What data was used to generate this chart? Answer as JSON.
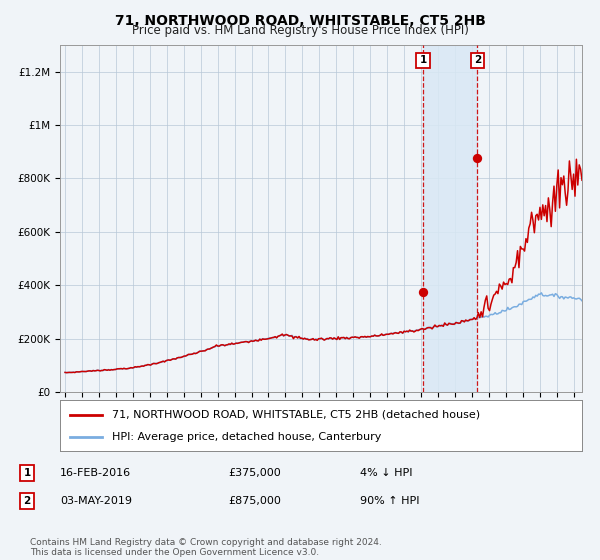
{
  "title": "71, NORTHWOOD ROAD, WHITSTABLE, CT5 2HB",
  "subtitle": "Price paid vs. HM Land Registry's House Price Index (HPI)",
  "ylim": [
    0,
    1300000
  ],
  "yticks": [
    0,
    200000,
    400000,
    600000,
    800000,
    1000000,
    1200000
  ],
  "ytick_labels": [
    "£0",
    "£200K",
    "£400K",
    "£600K",
    "£800K",
    "£1M",
    "£1.2M"
  ],
  "x_start_year": 1995,
  "x_end_year": 2025,
  "sale1_date": 2016.12,
  "sale1_price": 375000,
  "sale1_label": "16-FEB-2016",
  "sale1_pct": "4% ↓ HPI",
  "sale2_date": 2019.33,
  "sale2_price": 875000,
  "sale2_label": "03-MAY-2019",
  "sale2_pct": "90% ↑ HPI",
  "hpi_line_color": "#7aade0",
  "price_line_color": "#cc0000",
  "shade_color": "#d9e8f5",
  "background_color": "#f0f4f8",
  "plot_bg_color": "#f0f4f8",
  "grid_color": "#b8c8d8",
  "legend_box_color": "#ffffff",
  "footer_text": "Contains HM Land Registry data © Crown copyright and database right 2024.\nThis data is licensed under the Open Government Licence v3.0.",
  "legend1": "71, NORTHWOOD ROAD, WHITSTABLE, CT5 2HB (detached house)",
  "legend2": "HPI: Average price, detached house, Canterbury",
  "title_fontsize": 10,
  "subtitle_fontsize": 8.5,
  "tick_fontsize": 7.5,
  "legend_fontsize": 8,
  "footer_fontsize": 6.5
}
